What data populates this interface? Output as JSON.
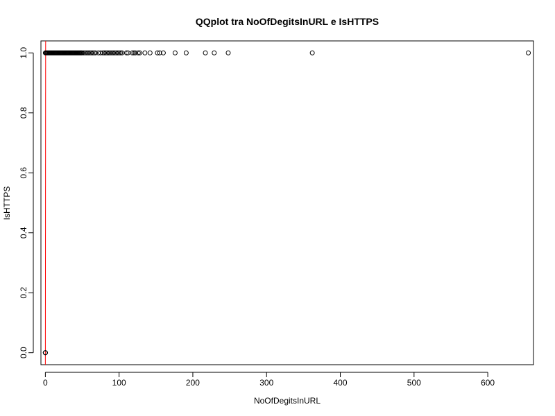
{
  "chart_data": {
    "type": "scatter",
    "title": "QQplot tra NoOfDegitsInURL e IsHTTPS",
    "xlabel": "NoOfDegitsInURL",
    "ylabel": "IsHTTPS",
    "xlim": [
      -6,
      662
    ],
    "ylim": [
      -0.04,
      1.04
    ],
    "x_ticks": [
      0,
      100,
      200,
      300,
      400,
      500,
      600
    ],
    "y_ticks": [
      0.0,
      0.2,
      0.4,
      0.6,
      0.8,
      1.0
    ],
    "x_tick_labels": [
      "0",
      "100",
      "200",
      "300",
      "400",
      "500",
      "600"
    ],
    "y_tick_labels": [
      "0.0",
      "0.2",
      "0.4",
      "0.6",
      "0.8",
      "1.0"
    ],
    "grid": false,
    "point_style": "open-circle",
    "series": [
      {
        "x": [
          0,
          0,
          0,
          0,
          0
        ],
        "y": [
          0,
          0,
          0,
          0,
          0
        ]
      },
      {
        "x": [
          0,
          1,
          2,
          3,
          4,
          5,
          6,
          7,
          8,
          9,
          10,
          11,
          12,
          13,
          14,
          15,
          16,
          17,
          18,
          19,
          20,
          21,
          22,
          23,
          24,
          25,
          26,
          27,
          28,
          29,
          30,
          31,
          32,
          33,
          34,
          35,
          36,
          37,
          38,
          39,
          40,
          41,
          42,
          43,
          44,
          45,
          46,
          47,
          48,
          49,
          50,
          52,
          54,
          56,
          58,
          60,
          62,
          64,
          66,
          68,
          72,
          75,
          78,
          80,
          82,
          84,
          86,
          88,
          90,
          92,
          94,
          96,
          98,
          100,
          102,
          104,
          110,
          112,
          118,
          120,
          122,
          126,
          128,
          135,
          142,
          152,
          155,
          160,
          176,
          191,
          217,
          229,
          248,
          362,
          655
        ],
        "y": [
          1,
          1,
          1,
          1,
          1,
          1,
          1,
          1,
          1,
          1,
          1,
          1,
          1,
          1,
          1,
          1,
          1,
          1,
          1,
          1,
          1,
          1,
          1,
          1,
          1,
          1,
          1,
          1,
          1,
          1,
          1,
          1,
          1,
          1,
          1,
          1,
          1,
          1,
          1,
          1,
          1,
          1,
          1,
          1,
          1,
          1,
          1,
          1,
          1,
          1,
          1,
          1,
          1,
          1,
          1,
          1,
          1,
          1,
          1,
          1,
          1,
          1,
          1,
          1,
          1,
          1,
          1,
          1,
          1,
          1,
          1,
          1,
          1,
          1,
          1,
          1,
          1,
          1,
          1,
          1,
          1,
          1,
          1,
          1,
          1,
          1,
          1,
          1,
          1,
          1,
          1,
          1,
          1,
          1,
          1
        ]
      }
    ],
    "reference_line": {
      "x": [
        0,
        0.4
      ],
      "y": [
        -0.04,
        1.04
      ],
      "color": "#ff0000"
    },
    "colors": {
      "points": "#000000",
      "reference_line": "#ff0000",
      "axes": "#000000"
    }
  }
}
